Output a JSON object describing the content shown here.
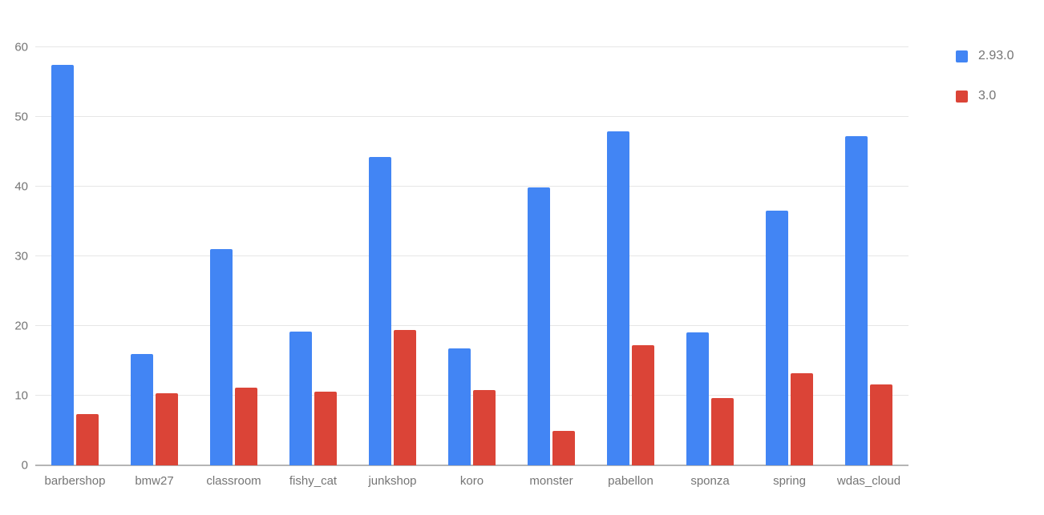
{
  "chart_data": {
    "type": "bar",
    "title": "",
    "xlabel": "",
    "ylabel": "",
    "categories": [
      "barbershop",
      "bmw27",
      "classroom",
      "fishy_cat",
      "junkshop",
      "koro",
      "monster",
      "pabellon",
      "sponza",
      "spring",
      "wdas_cloud"
    ],
    "series": [
      {
        "name": "2.93.0",
        "color": "#4285f4",
        "values": [
          57.5,
          16.0,
          31.0,
          19.2,
          44.2,
          16.8,
          39.9,
          47.9,
          19.1,
          36.5,
          47.3
        ]
      },
      {
        "name": "3.0",
        "color": "#db4437",
        "values": [
          7.4,
          10.4,
          11.1,
          10.6,
          19.4,
          10.8,
          5.0,
          17.3,
          9.6,
          13.2,
          11.6
        ]
      }
    ],
    "ylim": [
      0,
      60
    ],
    "yticks": [
      0,
      10,
      20,
      30,
      40,
      50,
      60
    ],
    "grid": true,
    "legend_position": "right"
  },
  "colors": {
    "series_blue": "#4285f4",
    "series_red": "#db4437",
    "gridline": "#e6e6e6",
    "axis_line": "#b5b5b5",
    "axis_text": "#757575",
    "background": "#ffffff"
  }
}
